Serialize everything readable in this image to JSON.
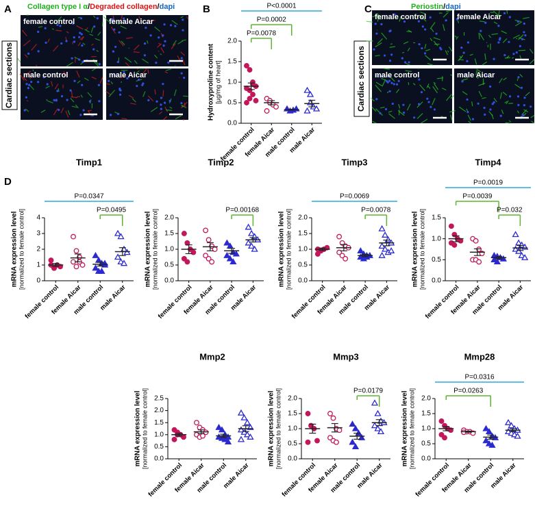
{
  "panel_labels": [
    "A",
    "B",
    "C",
    "D"
  ],
  "image_panels": [
    {
      "title_parts": [
        {
          "text": "Collagen type I α",
          "color": "#1db21d"
        },
        {
          "text": "/",
          "color": "#000000"
        },
        {
          "text": "Degraded collagen",
          "color": "#e01010"
        },
        {
          "text": "/",
          "color": "#000000"
        },
        {
          "text": "dapi",
          "color": "#1565c0"
        }
      ],
      "side_label": "Cardiac sections",
      "tiles": [
        "female control",
        "female Aicar",
        "male control",
        "male Aicar"
      ]
    },
    {
      "title_parts": [
        {
          "text": "Periostin",
          "color": "#1db21d"
        },
        {
          "text": "/",
          "color": "#000000"
        },
        {
          "text": "dapi",
          "color": "#1565c0"
        }
      ],
      "side_label": "Cardiac sections",
      "tiles": [
        "female control",
        "female Aicar",
        "male control",
        "male Aicar"
      ]
    }
  ],
  "chart_data": [
    {
      "type": "dotplot",
      "y_label": [
        "Hydroxyproline content",
        "[µg/mg of heart]"
      ],
      "categories": [
        "female control",
        "female Aicar",
        "male control",
        "male Aicar"
      ],
      "colors": [
        "#c2185b",
        "#c2185b",
        "#2a2ad0",
        "#2a2ad0"
      ],
      "markers": [
        "circle",
        "circle",
        "triangle",
        "triangle"
      ],
      "filled": [
        true,
        false,
        true,
        false
      ],
      "points": [
        [
          1.4,
          1.3,
          1.0,
          0.9,
          0.85,
          0.8,
          0.7,
          0.55,
          0.5,
          0.6,
          0.95
        ],
        [
          0.6,
          0.5,
          0.45,
          0.4,
          0.3,
          0.55
        ],
        [
          0.35,
          0.3,
          0.32,
          0.35
        ],
        [
          0.8,
          0.7,
          0.4,
          0.35,
          0.3,
          0.5
        ]
      ],
      "means": [
        0.9,
        0.5,
        0.33,
        0.48
      ],
      "sems": [
        0.08,
        0.05,
        0.01,
        0.08
      ],
      "ylim": [
        0,
        2.0
      ],
      "yticks": [
        {
          "value": 0,
          "label": "0.0"
        },
        0.5,
        {
          "value": 1,
          "label": "1.0"
        },
        1.5,
        {
          "value": 2,
          "label": "2.0"
        }
      ],
      "comparisons": [
        {
          "label": "P<0.0001",
          "from": 0,
          "to": 3,
          "color": "#29a8e0",
          "bracket": false
        },
        {
          "label": "P=0.0002",
          "from": 0,
          "to": 2,
          "color": "#5cb531",
          "bracket": true
        },
        {
          "label": "P=0.0078",
          "from": 0,
          "to": 1,
          "color": "#5cb531",
          "bracket": true
        }
      ]
    },
    {
      "type": "dotplot",
      "title": "Timp1",
      "y_label": [
        "mRNA expression level",
        "[normalized to female control]"
      ],
      "categories": [
        "female control",
        "female Aicar",
        "male control",
        "male Aicar"
      ],
      "colors": [
        "#c2185b",
        "#c2185b",
        "#2a2ad0",
        "#2a2ad0"
      ],
      "markers": [
        "circle",
        "circle",
        "triangle",
        "triangle"
      ],
      "filled": [
        true,
        false,
        true,
        false
      ],
      "points": [
        [
          1.0,
          0.8,
          1.0,
          0.9,
          1.3,
          0.8
        ],
        [
          2.8,
          1.9,
          1.5,
          1.0,
          1.2,
          0.9,
          1.2
        ],
        [
          1.6,
          1.3,
          1.1,
          1.0,
          0.8,
          0.6,
          0.6,
          1.1
        ],
        [
          3.0,
          2.8,
          2.0,
          1.8,
          1.5,
          1.2,
          1.1
        ]
      ],
      "means": [
        1.0,
        1.45,
        1.05,
        1.85
      ],
      "sems": [
        0.1,
        0.25,
        0.12,
        0.25
      ],
      "ylim": [
        0,
        4
      ],
      "yticks": [
        0,
        1,
        2,
        3,
        4
      ],
      "comparisons": [
        {
          "label": "P=0.0347",
          "from": 0,
          "to": 3,
          "color": "#29a8e0",
          "bracket": false
        },
        {
          "label": "P=0.0495",
          "from": 2,
          "to": 3,
          "color": "#5cb531",
          "bracket": true
        }
      ]
    },
    {
      "type": "dotplot",
      "title": "Timp2",
      "y_label": [
        "mRNA expression level",
        "[normalized to female control]"
      ],
      "categories": [
        "female control",
        "female Aicar",
        "male control",
        "male Aicar"
      ],
      "colors": [
        "#c2185b",
        "#c2185b",
        "#2a2ad0",
        "#2a2ad0"
      ],
      "markers": [
        "circle",
        "circle",
        "triangle",
        "triangle"
      ],
      "filled": [
        true,
        false,
        true,
        false
      ],
      "points": [
        [
          1.5,
          1.2,
          1.0,
          0.9,
          0.7,
          0.6
        ],
        [
          1.6,
          1.3,
          1.1,
          1.0,
          0.8,
          0.7,
          0.6
        ],
        [
          1.2,
          1.1,
          0.9,
          0.85,
          0.8,
          0.7,
          0.6
        ],
        [
          1.7,
          1.5,
          1.4,
          1.3,
          1.2,
          1.1,
          1.0
        ]
      ],
      "means": [
        1.0,
        1.08,
        0.95,
        1.3
      ],
      "sems": [
        0.14,
        0.13,
        0.08,
        0.07
      ],
      "ylim": [
        0,
        2.0
      ],
      "yticks": [
        {
          "value": 0,
          "label": "0.0"
        },
        0.5,
        {
          "value": 1,
          "label": "1.0"
        },
        1.5,
        {
          "value": 2,
          "label": "2.0"
        }
      ],
      "comparisons": [
        {
          "label": "P=0.00168",
          "from": 2,
          "to": 3,
          "color": "#5cb531",
          "bracket": true
        }
      ]
    },
    {
      "type": "dotplot",
      "title": "Timp3",
      "y_label": [
        "mRNA expression level",
        "[normalized to female control]"
      ],
      "categories": [
        "female control",
        "female Aicar",
        "male control",
        "male Aicar"
      ],
      "colors": [
        "#c2185b",
        "#c2185b",
        "#2a2ad0",
        "#2a2ad0"
      ],
      "markers": [
        "circle",
        "circle",
        "triangle",
        "triangle"
      ],
      "filled": [
        true,
        false,
        true,
        false
      ],
      "points": [
        [
          1.0,
          0.95,
          1.0,
          1.05,
          0.85
        ],
        [
          1.4,
          1.2,
          1.1,
          1.05,
          0.9,
          0.8,
          0.7
        ],
        [
          0.95,
          0.85,
          0.8,
          0.8,
          0.75,
          0.7,
          0.75
        ],
        [
          1.65,
          1.45,
          1.3,
          1.2,
          1.1,
          1.0,
          0.9,
          0.95,
          0.8
        ]
      ],
      "means": [
        1.0,
        1.05,
        0.8,
        1.2
      ],
      "sems": [
        0.04,
        0.1,
        0.04,
        0.09
      ],
      "ylim": [
        0,
        2.0
      ],
      "yticks": [
        {
          "value": 0,
          "label": "0.0"
        },
        0.5,
        {
          "value": 1,
          "label": "1.0"
        },
        1.5,
        {
          "value": 2,
          "label": "2.0"
        }
      ],
      "comparisons": [
        {
          "label": "P=0.0069",
          "from": 0,
          "to": 3,
          "color": "#29a8e0",
          "bracket": false
        },
        {
          "label": "P=0.0078",
          "from": 2,
          "to": 3,
          "color": "#5cb531",
          "bracket": true
        }
      ]
    },
    {
      "type": "dotplot",
      "title": "Timp4",
      "y_label": [
        "mRNA expression level",
        "[normalized to female control]"
      ],
      "categories": [
        "female control",
        "female Aicar",
        "male control",
        "male Aicar"
      ],
      "colors": [
        "#c2185b",
        "#c2185b",
        "#2a2ad0",
        "#2a2ad0"
      ],
      "markers": [
        "circle",
        "circle",
        "triangle",
        "triangle"
      ],
      "filled": [
        true,
        false,
        true,
        false
      ],
      "points": [
        [
          1.3,
          1.1,
          1.0,
          0.95,
          0.9,
          0.85
        ],
        [
          1.0,
          0.95,
          0.75,
          0.65,
          0.5,
          0.5,
          0.45
        ],
        [
          0.6,
          0.58,
          0.55,
          0.52,
          0.5,
          0.45
        ],
        [
          1.1,
          0.9,
          0.85,
          0.8,
          0.75,
          0.7,
          0.6,
          0.55
        ]
      ],
      "means": [
        1.0,
        0.68,
        0.55,
        0.78
      ],
      "sems": [
        0.07,
        0.08,
        0.03,
        0.06
      ],
      "ylim": [
        0,
        1.5
      ],
      "yticks": [
        {
          "value": 0,
          "label": "0.0"
        },
        0.5,
        {
          "value": 1,
          "label": "1.0"
        },
        1.5
      ],
      "comparisons": [
        {
          "label": "P=0.0019",
          "from": 0,
          "to": 3,
          "color": "#29a8e0",
          "bracket": false
        },
        {
          "label": "P=0.0039",
          "from": 0,
          "to": 2,
          "color": "#5cb531",
          "bracket": true
        },
        {
          "label": "P=0.032",
          "from": 2,
          "to": 3,
          "color": "#5cb531",
          "bracket": true
        }
      ]
    },
    {
      "type": "dotplot",
      "title": "Mmp2",
      "y_label": [
        "mRNA expression level",
        "[normalized to female control]"
      ],
      "categories": [
        "female control",
        "female Aicar",
        "male control",
        "male Aicar"
      ],
      "colors": [
        "#c2185b",
        "#c2185b",
        "#2a2ad0",
        "#2a2ad0"
      ],
      "markers": [
        "circle",
        "circle",
        "triangle",
        "triangle"
      ],
      "filled": [
        true,
        false,
        true,
        false
      ],
      "points": [
        [
          1.2,
          1.0,
          1.0,
          0.9,
          0.8,
          1.1
        ],
        [
          1.5,
          1.3,
          1.2,
          1.1,
          1.0,
          0.9,
          0.95
        ],
        [
          1.3,
          1.2,
          1.0,
          0.9,
          0.9,
          0.85,
          0.8,
          0.7
        ],
        [
          1.9,
          1.7,
          1.5,
          1.3,
          1.2,
          1.1,
          1.0,
          0.9,
          0.8
        ]
      ],
      "means": [
        1.0,
        1.12,
        0.95,
        1.25
      ],
      "sems": [
        0.06,
        0.08,
        0.07,
        0.12
      ],
      "ylim": [
        0,
        2.5
      ],
      "yticks": [
        {
          "value": 0,
          "label": "0.0"
        },
        0.5,
        {
          "value": 1,
          "label": "1.0"
        },
        1.5,
        {
          "value": 2,
          "label": "2.0"
        },
        2.5
      ],
      "comparisons": []
    },
    {
      "type": "dotplot",
      "title": "Mmp3",
      "y_label": [
        "mRNA expression level",
        "[normalized to female control]"
      ],
      "categories": [
        "female control",
        "female Aicar",
        "male control",
        "male Aicar"
      ],
      "colors": [
        "#c2185b",
        "#c2185b",
        "#2a2ad0",
        "#2a2ad0"
      ],
      "markers": [
        "circle",
        "circle",
        "triangle",
        "triangle"
      ],
      "filled": [
        true,
        false,
        true,
        false
      ],
      "points": [
        [
          1.5,
          1.1,
          1.0,
          0.6,
          0.55
        ],
        [
          1.5,
          1.35,
          1.0,
          0.95,
          0.7,
          0.6,
          0.55
        ],
        [
          1.15,
          1.0,
          0.85,
          0.7,
          0.55,
          0.4
        ],
        [
          1.85,
          1.5,
          1.25,
          1.2,
          1.1,
          1.0,
          0.9
        ]
      ],
      "means": [
        1.0,
        1.03,
        0.75,
        1.2
      ],
      "sems": [
        0.15,
        0.14,
        0.1,
        0.1
      ],
      "ylim": [
        0,
        2.0
      ],
      "yticks": [
        {
          "value": 0,
          "label": "0.0"
        },
        0.5,
        {
          "value": 1,
          "label": "1.0"
        },
        1.5,
        {
          "value": 2,
          "label": "2.0"
        }
      ],
      "comparisons": [
        {
          "label": "P=0.0179",
          "from": 2,
          "to": 3,
          "color": "#5cb531",
          "bracket": true
        }
      ]
    },
    {
      "type": "dotplot",
      "title": "Mmp28",
      "y_label": [
        "mRNA expression level",
        "[normalized to female control]"
      ],
      "categories": [
        "female control",
        "female Aicar",
        "male control",
        "male Aicar"
      ],
      "colors": [
        "#c2185b",
        "#c2185b",
        "#2a2ad0",
        "#2a2ad0"
      ],
      "markers": [
        "circle",
        "circle",
        "triangle",
        "triangle"
      ],
      "filled": [
        true,
        false,
        true,
        false
      ],
      "points": [
        [
          1.25,
          1.1,
          1.0,
          0.95,
          0.8,
          0.7
        ],
        [
          0.95,
          0.9,
          0.9,
          0.85,
          0.88
        ],
        [
          1.0,
          0.9,
          0.75,
          0.7,
          0.6,
          0.5,
          0.45
        ],
        [
          1.2,
          1.1,
          1.0,
          0.95,
          0.9,
          0.85,
          0.8,
          0.75
        ]
      ],
      "means": [
        1.0,
        0.9,
        0.72,
        0.95
      ],
      "sems": [
        0.07,
        0.02,
        0.07,
        0.05
      ],
      "ylim": [
        0,
        2.0
      ],
      "yticks": [
        {
          "value": 0,
          "label": "0.0"
        },
        0.5,
        {
          "value": 1,
          "label": "1.0"
        },
        1.5,
        {
          "value": 2,
          "label": "2.0"
        }
      ],
      "comparisons": [
        {
          "label": "P=0.0316",
          "from": 0,
          "to": 3,
          "color": "#29a8e0",
          "bracket": false
        },
        {
          "label": "P=0.0263",
          "from": 0,
          "to": 2,
          "color": "#5cb531",
          "bracket": true
        }
      ]
    }
  ]
}
